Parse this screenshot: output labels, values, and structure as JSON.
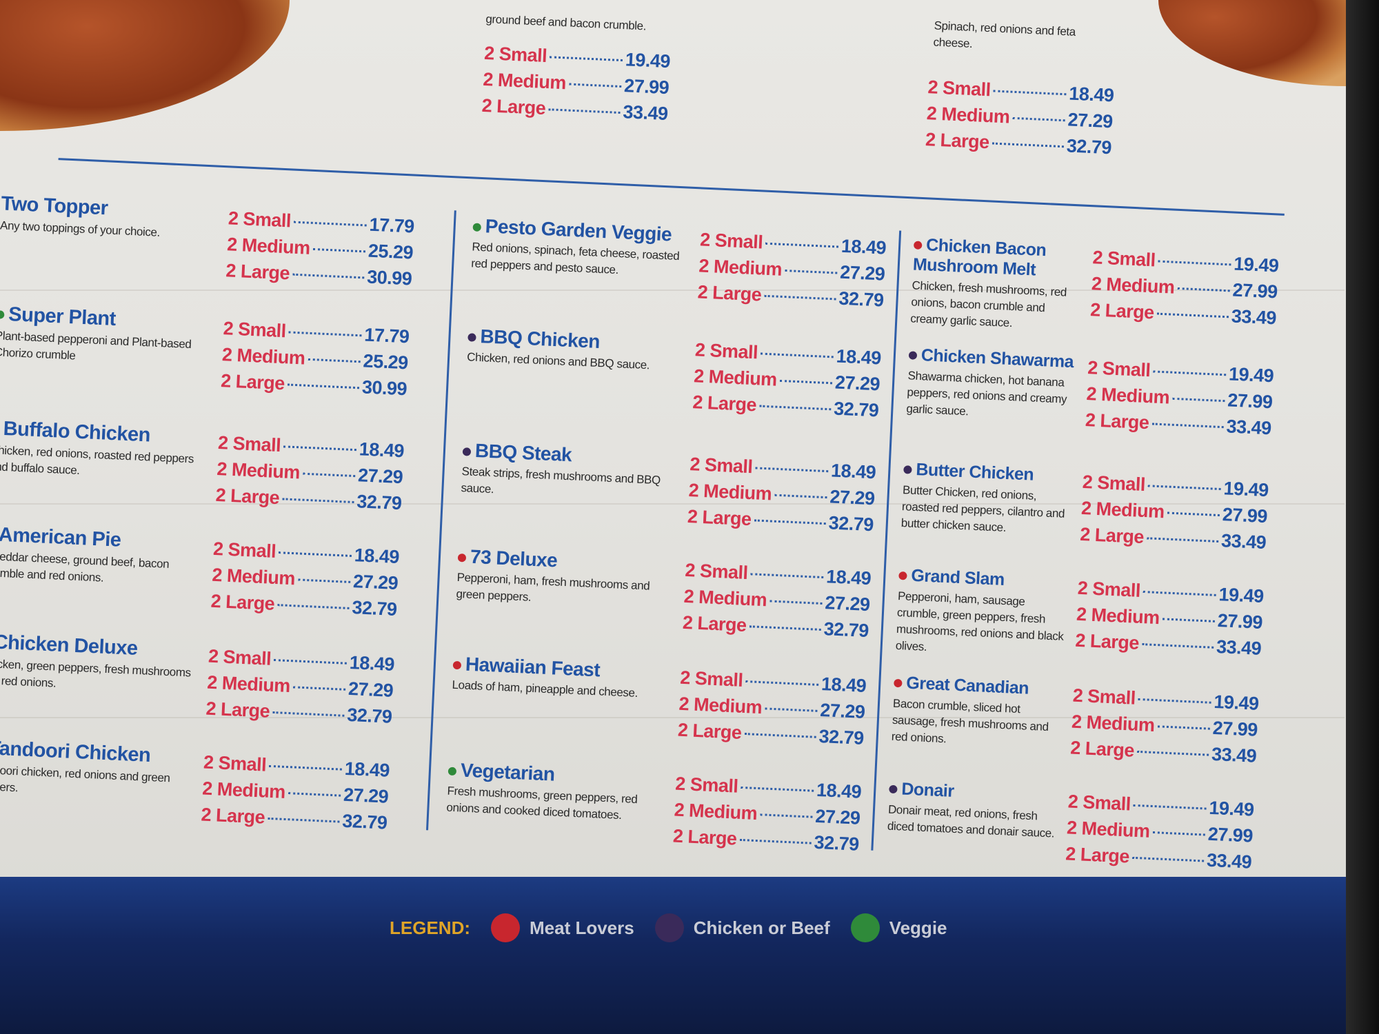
{
  "colors": {
    "meat": "#c8262e",
    "chicken_beef": "#3a2a5a",
    "veggie": "#2f8a3a",
    "name": "#2253a3",
    "size_label": "#d5344d"
  },
  "top": {
    "col2": {
      "desc": "ground beef and bacon crumble.",
      "prices": [
        {
          "label": "2 Small",
          "price": "19.49"
        },
        {
          "label": "2 Medium",
          "price": "27.99"
        },
        {
          "label": "2 Large",
          "price": "33.49"
        }
      ]
    },
    "col3": {
      "desc": "Spinach, red onions and feta cheese.",
      "prices": [
        {
          "label": "2 Small",
          "price": "18.49"
        },
        {
          "label": "2 Medium",
          "price": "27.29"
        },
        {
          "label": "2 Large",
          "price": "32.79"
        }
      ]
    }
  },
  "columns": [
    {
      "items": [
        {
          "name": "Two Topper",
          "type": "",
          "desc": "Any two toppings of your choice.",
          "prices": [
            {
              "label": "2 Small",
              "price": "17.79"
            },
            {
              "label": "2 Medium",
              "price": "25.29"
            },
            {
              "label": "2 Large",
              "price": "30.99"
            }
          ]
        },
        {
          "name": "Super Plant",
          "type": "veggie",
          "desc": "Plant-based pepperoni and Plant-based Chorizo crumble",
          "prices": [
            {
              "label": "2 Small",
              "price": "17.79"
            },
            {
              "label": "2 Medium",
              "price": "25.29"
            },
            {
              "label": "2 Large",
              "price": "30.99"
            }
          ]
        },
        {
          "name": "Buffalo Chicken",
          "type": "chicken_beef",
          "desc": "Chicken, red onions, roasted red peppers and buffalo sauce.",
          "prices": [
            {
              "label": "2 Small",
              "price": "18.49"
            },
            {
              "label": "2 Medium",
              "price": "27.29"
            },
            {
              "label": "2 Large",
              "price": "32.79"
            }
          ]
        },
        {
          "name": "American Pie",
          "type": "meat",
          "desc": "Cheddar cheese, ground beef, bacon crumble and red onions.",
          "prices": [
            {
              "label": "2 Small",
              "price": "18.49"
            },
            {
              "label": "2 Medium",
              "price": "27.29"
            },
            {
              "label": "2 Large",
              "price": "32.79"
            }
          ]
        },
        {
          "name": "Chicken Deluxe",
          "type": "chicken_beef",
          "desc": "Chicken, green peppers, fresh mushrooms and red onions.",
          "prices": [
            {
              "label": "2 Small",
              "price": "18.49"
            },
            {
              "label": "2 Medium",
              "price": "27.29"
            },
            {
              "label": "2 Large",
              "price": "32.79"
            }
          ]
        },
        {
          "name": "Tandoori Chicken",
          "type": "chicken_beef",
          "desc": "Tandoori chicken, red onions and green peppers.",
          "prices": [
            {
              "label": "2 Small",
              "price": "18.49"
            },
            {
              "label": "2 Medium",
              "price": "27.29"
            },
            {
              "label": "2 Large",
              "price": "32.79"
            }
          ]
        }
      ]
    },
    {
      "items": [
        {
          "name": "Pesto Garden Veggie",
          "type": "veggie",
          "desc": "Red onions, spinach, feta cheese, roasted red peppers and pesto sauce.",
          "prices": [
            {
              "label": "2 Small",
              "price": "18.49"
            },
            {
              "label": "2 Medium",
              "price": "27.29"
            },
            {
              "label": "2 Large",
              "price": "32.79"
            }
          ]
        },
        {
          "name": "BBQ Chicken",
          "type": "chicken_beef",
          "desc": "Chicken, red onions and BBQ sauce.",
          "prices": [
            {
              "label": "2 Small",
              "price": "18.49"
            },
            {
              "label": "2 Medium",
              "price": "27.29"
            },
            {
              "label": "2 Large",
              "price": "32.79"
            }
          ]
        },
        {
          "name": "BBQ Steak",
          "type": "chicken_beef",
          "desc": "Steak strips, fresh mushrooms and BBQ sauce.",
          "prices": [
            {
              "label": "2 Small",
              "price": "18.49"
            },
            {
              "label": "2 Medium",
              "price": "27.29"
            },
            {
              "label": "2 Large",
              "price": "32.79"
            }
          ]
        },
        {
          "name": "73 Deluxe",
          "type": "meat",
          "desc": "Pepperoni, ham, fresh mushrooms and green peppers.",
          "prices": [
            {
              "label": "2 Small",
              "price": "18.49"
            },
            {
              "label": "2 Medium",
              "price": "27.29"
            },
            {
              "label": "2 Large",
              "price": "32.79"
            }
          ]
        },
        {
          "name": "Hawaiian Feast",
          "type": "meat",
          "desc": "Loads of ham, pineapple and cheese.",
          "prices": [
            {
              "label": "2 Small",
              "price": "18.49"
            },
            {
              "label": "2 Medium",
              "price": "27.29"
            },
            {
              "label": "2 Large",
              "price": "32.79"
            }
          ]
        },
        {
          "name": "Vegetarian",
          "type": "veggie",
          "desc": "Fresh mushrooms, green peppers, red onions and cooked diced tomatoes.",
          "prices": [
            {
              "label": "2 Small",
              "price": "18.49"
            },
            {
              "label": "2 Medium",
              "price": "27.29"
            },
            {
              "label": "2 Large",
              "price": "32.79"
            }
          ]
        }
      ]
    },
    {
      "items": [
        {
          "name": "Chicken Bacon Mushroom Melt",
          "type": "meat",
          "desc": "Chicken, fresh mushrooms, red onions, bacon crumble and creamy garlic sauce.",
          "prices": [
            {
              "label": "2 Small",
              "price": "19.49"
            },
            {
              "label": "2 Medium",
              "price": "27.99"
            },
            {
              "label": "2 Large",
              "price": "33.49"
            }
          ]
        },
        {
          "name": "Chicken Shawarma",
          "type": "chicken_beef",
          "desc": "Shawarma chicken, hot banana peppers, red onions and creamy garlic sauce.",
          "prices": [
            {
              "label": "2 Small",
              "price": "19.49"
            },
            {
              "label": "2 Medium",
              "price": "27.99"
            },
            {
              "label": "2 Large",
              "price": "33.49"
            }
          ]
        },
        {
          "name": "Butter Chicken",
          "type": "chicken_beef",
          "desc": "Butter Chicken, red onions, roasted red peppers, cilantro and butter chicken sauce.",
          "prices": [
            {
              "label": "2 Small",
              "price": "19.49"
            },
            {
              "label": "2 Medium",
              "price": "27.99"
            },
            {
              "label": "2 Large",
              "price": "33.49"
            }
          ]
        },
        {
          "name": "Grand Slam",
          "type": "meat",
          "desc": "Pepperoni, ham, sausage crumble, green peppers, fresh mushrooms, red onions and black olives.",
          "prices": [
            {
              "label": "2 Small",
              "price": "19.49"
            },
            {
              "label": "2 Medium",
              "price": "27.99"
            },
            {
              "label": "2 Large",
              "price": "33.49"
            }
          ]
        },
        {
          "name": "Great Canadian",
          "type": "meat",
          "desc": "Bacon crumble, sliced hot sausage, fresh mushrooms and red onions.",
          "prices": [
            {
              "label": "2 Small",
              "price": "19.49"
            },
            {
              "label": "2 Medium",
              "price": "27.99"
            },
            {
              "label": "2 Large",
              "price": "33.49"
            }
          ]
        },
        {
          "name": "Donair",
          "type": "chicken_beef",
          "desc": "Donair meat, red onions, fresh diced tomatoes and donair sauce.",
          "prices": [
            {
              "label": "2 Small",
              "price": "19.49"
            },
            {
              "label": "2 Medium",
              "price": "27.99"
            },
            {
              "label": "2 Large",
              "price": "33.49"
            }
          ]
        }
      ]
    }
  ],
  "legend": {
    "title": "LEGEND:",
    "items": [
      {
        "label": "Meat Lovers",
        "type": "meat"
      },
      {
        "label": "Chicken or Beef",
        "type": "chicken_beef"
      },
      {
        "label": "Veggie",
        "type": "veggie"
      }
    ]
  }
}
